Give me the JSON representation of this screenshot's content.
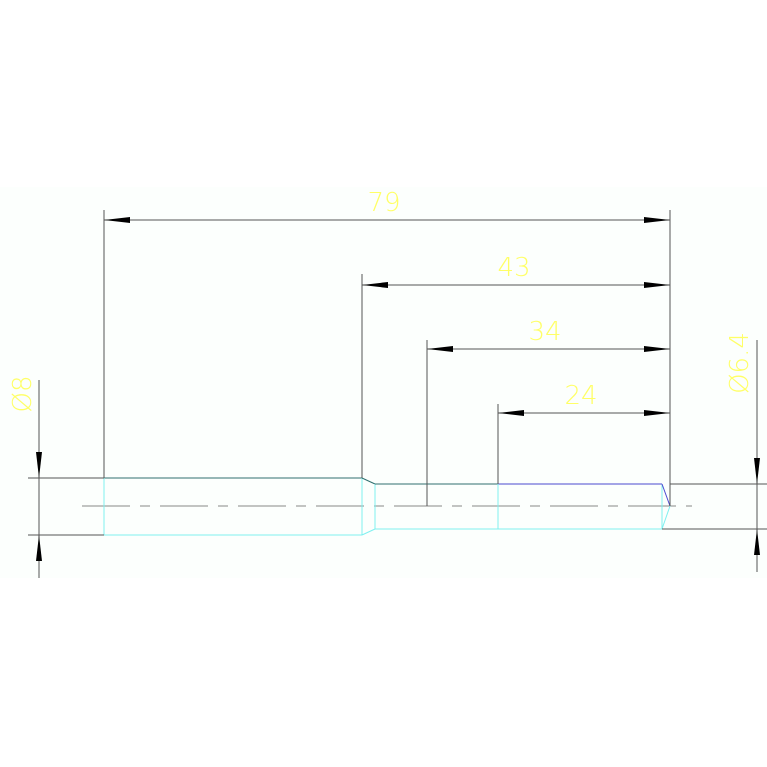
{
  "drawing": {
    "dimensions": {
      "overall_length": "79",
      "length_43": "43",
      "length_34": "34",
      "length_24": "24",
      "diameter_left": "Ø8",
      "diameter_right": "Ø6.4"
    },
    "colors": {
      "background": "#fcfffd",
      "dimension_text": "#ffff66",
      "outline_dark": "#2f6f6f",
      "outline_cyan": "#7ff0f0",
      "outline_blue": "#4a4ad0"
    }
  }
}
